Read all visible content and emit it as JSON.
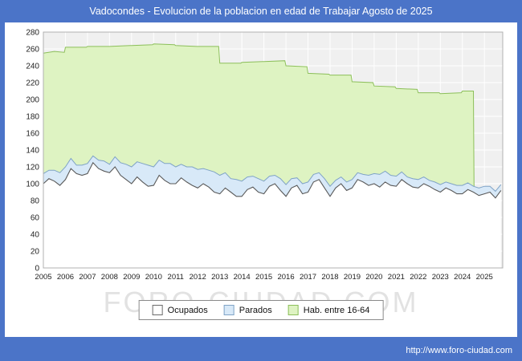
{
  "title": "Vadocondes - Evolucion de la poblacion en edad de Trabajar Agosto de 2025",
  "watermark": "FORO-CIUDAD.COM",
  "footer_url": "http://www.foro-ciudad.com",
  "frame_color": "#4b74c8",
  "legend": {
    "items": [
      {
        "label": "Ocupados",
        "fill": "#ffffff",
        "stroke": "#6a6a6a"
      },
      {
        "label": "Parados",
        "fill": "#d8e9f8",
        "stroke": "#7fa3c6"
      },
      {
        "label": "Hab. entre 16-64",
        "fill": "#def3c2",
        "stroke": "#8cbf5a"
      }
    ]
  },
  "chart_data": {
    "type": "area",
    "title": "Vadocondes - Evolucion de la poblacion en edad de Trabajar Agosto de 2025",
    "xlabel": "",
    "ylabel": "",
    "grid": true,
    "legend_position": "bottom",
    "plot_bg": "#f0f0f0",
    "grid_color": "#ffffff",
    "border_color": "#b0b0b0",
    "ylim": [
      0,
      280
    ],
    "y_tick_step": 20,
    "x_ticks": [
      2005,
      2006,
      2007,
      2008,
      2009,
      2010,
      2011,
      2012,
      2013,
      2014,
      2015,
      2016,
      2017,
      2018,
      2019,
      2020,
      2021,
      2022,
      2023,
      2024,
      2025
    ],
    "x_start": 2005,
    "x_step": 0.25,
    "x_max_plot": 2025.83,
    "series": [
      {
        "name": "Ocupados",
        "fill": "#ffffff",
        "stroke": "#5a5a5a",
        "values": [
          100,
          106,
          103,
          98,
          105,
          118,
          112,
          110,
          112,
          125,
          118,
          115,
          113,
          120,
          110,
          105,
          100,
          108,
          102,
          97,
          98,
          110,
          104,
          100,
          100,
          107,
          102,
          98,
          95,
          100,
          96,
          90,
          88,
          95,
          90,
          85,
          85,
          93,
          96,
          90,
          88,
          97,
          100,
          92,
          85,
          95,
          98,
          88,
          90,
          102,
          105,
          95,
          85,
          95,
          100,
          92,
          95,
          105,
          102,
          98,
          100,
          96,
          102,
          98,
          97,
          105,
          100,
          96,
          95,
          100,
          97,
          93,
          90,
          95,
          92,
          88,
          88,
          93,
          90,
          86,
          88,
          90,
          83,
          92
        ]
      },
      {
        "name": "Parados",
        "stacked_on": "Ocupados",
        "fill": "#d8e9f8",
        "stroke": "#7fa3c6",
        "values": [
          12,
          10,
          13,
          15,
          15,
          12,
          10,
          12,
          12,
          8,
          10,
          12,
          10,
          12,
          15,
          18,
          20,
          18,
          22,
          25,
          22,
          18,
          20,
          24,
          20,
          16,
          18,
          22,
          22,
          18,
          20,
          24,
          22,
          18,
          16,
          20,
          18,
          15,
          13,
          16,
          15,
          12,
          10,
          14,
          14,
          11,
          9,
          12,
          12,
          9,
          8,
          11,
          12,
          9,
          8,
          10,
          10,
          8,
          9,
          12,
          12,
          15,
          13,
          12,
          12,
          9,
          8,
          10,
          10,
          8,
          7,
          9,
          9,
          7,
          8,
          10,
          10,
          8,
          7,
          9,
          9,
          7,
          8,
          7
        ]
      },
      {
        "name": "Hab. entre 16-64",
        "fill": "#def3c2",
        "stroke": "#8cbf5a",
        "points": [
          [
            2005,
            255
          ],
          [
            2005.5,
            257
          ],
          [
            2005.95,
            256
          ],
          [
            2006,
            262
          ],
          [
            2006.95,
            262
          ],
          [
            2007,
            263
          ],
          [
            2007.95,
            263
          ],
          [
            2008,
            263
          ],
          [
            2008.95,
            264
          ],
          [
            2009,
            264
          ],
          [
            2009.95,
            265
          ],
          [
            2010,
            266
          ],
          [
            2010.95,
            265
          ],
          [
            2011,
            264
          ],
          [
            2011.95,
            263
          ],
          [
            2012,
            263
          ],
          [
            2012.95,
            263
          ],
          [
            2013,
            243
          ],
          [
            2013.95,
            243
          ],
          [
            2014,
            244
          ],
          [
            2014.95,
            245
          ],
          [
            2015,
            245
          ],
          [
            2015.95,
            246
          ],
          [
            2016,
            240
          ],
          [
            2016.95,
            239
          ],
          [
            2017,
            231
          ],
          [
            2017.95,
            230
          ],
          [
            2018,
            229
          ],
          [
            2018.95,
            229
          ],
          [
            2019,
            221
          ],
          [
            2019.95,
            220
          ],
          [
            2020,
            216
          ],
          [
            2020.95,
            215
          ],
          [
            2021,
            213
          ],
          [
            2021.95,
            212
          ],
          [
            2022,
            208
          ],
          [
            2022.95,
            208
          ],
          [
            2023,
            207
          ],
          [
            2023.95,
            208
          ],
          [
            2024,
            210
          ],
          [
            2024.5,
            210
          ],
          [
            2024.55,
            0
          ]
        ]
      }
    ]
  }
}
